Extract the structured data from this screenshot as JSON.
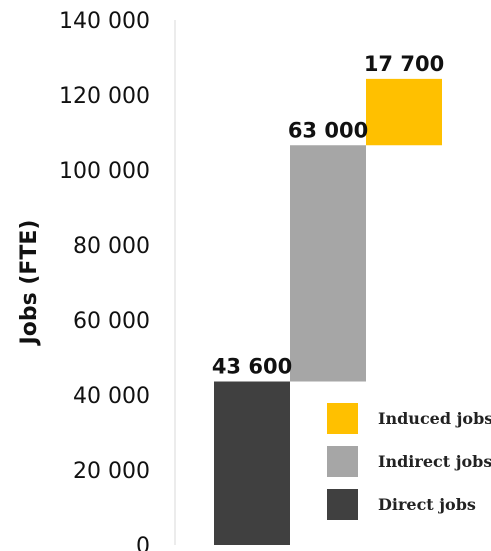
{
  "chart_data": {
    "type": "bar",
    "subtype": "waterfall",
    "ylabel": "Jobs (FTE)",
    "ylim": [
      0,
      140000
    ],
    "yticks": [
      0,
      20000,
      40000,
      60000,
      80000,
      100000,
      120000,
      140000
    ],
    "ytick_labels": [
      "0",
      "20 000",
      "40 000",
      "60 000",
      "80 000",
      "100 000",
      "120 000",
      "140 000"
    ],
    "grid": false,
    "legend_placement": "bottom-right",
    "series": [
      {
        "name": "Direct jobs",
        "value": 43600,
        "base": 0,
        "label": "43 600",
        "color": "#404040"
      },
      {
        "name": "Indirect jobs",
        "value": 63000,
        "base": 43600,
        "label": "63 000",
        "color": "#A6A6A6"
      },
      {
        "name": "Induced jobs",
        "value": 17700,
        "base": 106600,
        "label": "17 700",
        "color": "#FFC000"
      }
    ],
    "legend": [
      {
        "label": "Induced jobs",
        "color": "#FFC000"
      },
      {
        "label": "Indirect jobs",
        "color": "#A6A6A6"
      },
      {
        "label": "Direct jobs",
        "color": "#404040"
      }
    ]
  }
}
